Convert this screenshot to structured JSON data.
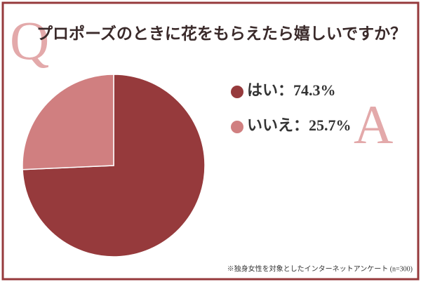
{
  "chart_data": {
    "type": "pie",
    "title": "プロポーズのときに花をもらえたら嬉しいですか？",
    "question_mark": "Q",
    "answer_mark": "A",
    "categories": [
      "はい",
      "いいえ"
    ],
    "values": [
      74.3,
      25.7
    ],
    "value_labels": [
      "74.3%",
      "25.7%"
    ],
    "label_separator": "：",
    "colors": [
      "#963a3c",
      "#d07f80"
    ],
    "footnote": "※独身女性を対象としたインターネットアンケート (n=300)"
  }
}
